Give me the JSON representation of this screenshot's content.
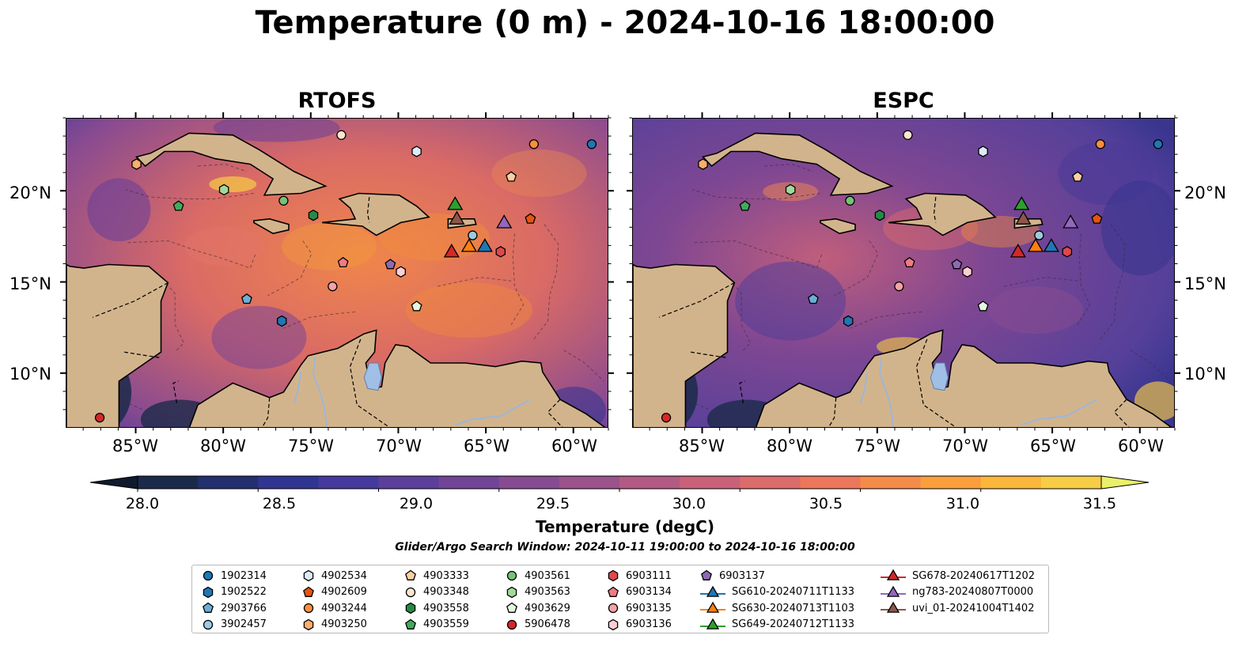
{
  "title": "Temperature (0 m) - 2024-10-16 18:00:00",
  "panels": [
    {
      "title": "RTOFS"
    },
    {
      "title": "ESPC"
    }
  ],
  "axes": {
    "x_ticks": [
      "85°W",
      "80°W",
      "75°W",
      "70°W",
      "65°W",
      "60°W"
    ],
    "y_ticks_left": [
      "20°N",
      "15°N",
      "10°N"
    ],
    "y_ticks_right": [
      "20°N",
      "15°N",
      "10°N"
    ]
  },
  "colorbar": {
    "label": "Temperature (degC)",
    "ticks": [
      "28.0",
      "28.5",
      "29.0",
      "29.5",
      "30.0",
      "30.5",
      "31.0",
      "31.5"
    ],
    "colors": [
      "#1b2a4a",
      "#23306e",
      "#2f3590",
      "#45399e",
      "#5b3f9b",
      "#714497",
      "#874b92",
      "#9c528b",
      "#b35a84",
      "#c9617a",
      "#dc6b6b",
      "#ec775b",
      "#f58b49",
      "#fa9f3c",
      "#fbb73a",
      "#f7cd45"
    ],
    "under_color": "#0f1a2e",
    "over_color": "#e9f06a"
  },
  "search_window": "Glider/Argo Search Window: 2024-10-11 19:00:00 to 2024-10-16 18:00:00",
  "colors": {
    "land": "#d2b48c",
    "lake": "#9fbfe6",
    "river": "#9fb6d6",
    "ocean_rtofs": "#9a4f8c",
    "ocean_espc": "#6a4295",
    "warm": "#f08a3e",
    "cool": "#3a3690"
  },
  "legend": [
    {
      "label": "1902314",
      "marker": "circle",
      "color": "#1f77b4"
    },
    {
      "label": "1902522",
      "marker": "hexagon",
      "color": "#1f77b4"
    },
    {
      "label": "2903766",
      "marker": "pentagon",
      "color": "#6baed6"
    },
    {
      "label": "3902457",
      "marker": "circle",
      "color": "#9ecae1"
    },
    {
      "label": "4902534",
      "marker": "hexagon",
      "color": "#deebf7"
    },
    {
      "label": "4902609",
      "marker": "pentagon",
      "color": "#e6550d"
    },
    {
      "label": "4903244",
      "marker": "circle",
      "color": "#fd8d3c"
    },
    {
      "label": "4903250",
      "marker": "hexagon",
      "color": "#fdae6b"
    },
    {
      "label": "4903333",
      "marker": "pentagon",
      "color": "#fdd0a2"
    },
    {
      "label": "4903348",
      "marker": "circle",
      "color": "#fee6ce"
    },
    {
      "label": "4903558",
      "marker": "hexagon",
      "color": "#238b45"
    },
    {
      "label": "4903559",
      "marker": "pentagon",
      "color": "#41ab5d"
    },
    {
      "label": "4903561",
      "marker": "circle",
      "color": "#74c476"
    },
    {
      "label": "4903563",
      "marker": "hexagon",
      "color": "#a1d99b"
    },
    {
      "label": "4903629",
      "marker": "pentagon",
      "color": "#e5f5e0"
    },
    {
      "label": "5906478",
      "marker": "circle",
      "color": "#d62728"
    },
    {
      "label": "6903111",
      "marker": "hexagon",
      "color": "#e0474c"
    },
    {
      "label": "6903134",
      "marker": "pentagon",
      "color": "#f07b84"
    },
    {
      "label": "6903135",
      "marker": "circle",
      "color": "#f4a3a6"
    },
    {
      "label": "6903136",
      "marker": "hexagon",
      "color": "#fcd0d2"
    },
    {
      "label": "6903137",
      "marker": "pentagon",
      "color": "#8c6bb1"
    },
    {
      "label": "SG610-20240711T1133",
      "marker": "triangle",
      "color": "#1f77b4"
    },
    {
      "label": "SG630-20240713T1103",
      "marker": "triangle",
      "color": "#ff7f0e"
    },
    {
      "label": "SG649-20240712T1133",
      "marker": "triangle",
      "color": "#2ca02c"
    },
    {
      "label": "SG678-20240617T1202",
      "marker": "triangle",
      "color": "#d62728"
    },
    {
      "label": "ng783-20240807T0000",
      "marker": "triangle",
      "color": "#9467bd"
    },
    {
      "label": "uvi_01-20241004T1402",
      "marker": "triangle",
      "color": "#8c564b"
    }
  ],
  "map_extent": {
    "lon": [
      -89,
      -58
    ],
    "lat": [
      7,
      24
    ]
  },
  "points": [
    {
      "id": "1902314",
      "lon": -59,
      "lat": 22.6
    },
    {
      "id": "1902522",
      "lon": -76.7,
      "lat": 12.9
    },
    {
      "id": "2903766",
      "lon": -78.7,
      "lat": 14.1
    },
    {
      "id": "3902457",
      "lon": -65.8,
      "lat": 17.6
    },
    {
      "id": "4902534",
      "lon": -69,
      "lat": 22.2
    },
    {
      "id": "4902609",
      "lon": -62.5,
      "lat": 18.5
    },
    {
      "id": "4903244",
      "lon": -62.3,
      "lat": 22.6
    },
    {
      "id": "4903250",
      "lon": -85,
      "lat": 21.5
    },
    {
      "id": "4903333",
      "lon": -63.6,
      "lat": 20.8
    },
    {
      "id": "4903348",
      "lon": -73.3,
      "lat": 23.1
    },
    {
      "id": "4903558",
      "lon": -74.9,
      "lat": 18.7
    },
    {
      "id": "4903559",
      "lon": -82.6,
      "lat": 19.2
    },
    {
      "id": "4903561",
      "lon": -76.6,
      "lat": 19.5
    },
    {
      "id": "4903563",
      "lon": -80,
      "lat": 20.1
    },
    {
      "id": "4903629",
      "lon": -69,
      "lat": 13.7
    },
    {
      "id": "5906478",
      "lon": -87.1,
      "lat": 7.6
    },
    {
      "id": "6903111",
      "lon": -64.2,
      "lat": 16.7
    },
    {
      "id": "6903134",
      "lon": -73.2,
      "lat": 16.1
    },
    {
      "id": "6903135",
      "lon": -73.8,
      "lat": 14.8
    },
    {
      "id": "6903136",
      "lon": -69.9,
      "lat": 15.6
    },
    {
      "id": "6903137",
      "lon": -70.5,
      "lat": 16
    },
    {
      "id": "SG610-20240711T1133",
      "lon": -65.1,
      "lat": 17
    },
    {
      "id": "SG630-20240713T1103",
      "lon": -66,
      "lat": 17
    },
    {
      "id": "SG649-20240712T1133",
      "lon": -66.8,
      "lat": 19.3
    },
    {
      "id": "SG678-20240617T1202",
      "lon": -67,
      "lat": 16.7
    },
    {
      "id": "ng783-20240807T0000",
      "lon": -64,
      "lat": 18.3
    },
    {
      "id": "uvi_01-20241004T1402",
      "lon": -66.7,
      "lat": 18.5
    }
  ]
}
